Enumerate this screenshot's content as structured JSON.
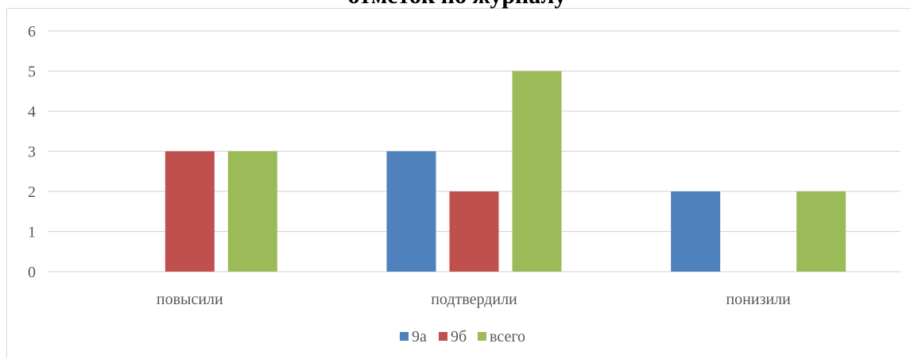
{
  "chart_data": {
    "type": "bar",
    "title": "отметок по журналу",
    "xlabel": "",
    "ylabel": "",
    "categories": [
      "повысили",
      "подтвердили",
      "понизили"
    ],
    "series": [
      {
        "name": "9а",
        "color": "#4f81bd",
        "values": [
          0,
          3,
          2
        ]
      },
      {
        "name": "9б",
        "color": "#c0504d",
        "values": [
          3,
          2,
          0
        ]
      },
      {
        "name": "всего",
        "color": "#9bbb59",
        "values": [
          3,
          5,
          2
        ]
      }
    ],
    "ylim": [
      0,
      6
    ],
    "yticks": [
      "0",
      "1",
      "2",
      "3",
      "4",
      "5",
      "6"
    ],
    "grid": true,
    "legend_position": "bottom"
  }
}
